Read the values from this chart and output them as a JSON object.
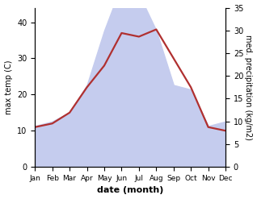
{
  "months": [
    "Jan",
    "Feb",
    "Mar",
    "Apr",
    "May",
    "Jun",
    "Jul",
    "Aug",
    "Sep",
    "Oct",
    "Nov",
    "Dec"
  ],
  "month_indices": [
    1,
    2,
    3,
    4,
    5,
    6,
    7,
    8,
    9,
    10,
    11,
    12
  ],
  "temperature": [
    11,
    12,
    15,
    22,
    28,
    37,
    36,
    38,
    30,
    22,
    11,
    10
  ],
  "precipitation": [
    9,
    10,
    12,
    18,
    30,
    40,
    38,
    30,
    18,
    17,
    9,
    10
  ],
  "temp_color": "#b03030",
  "precip_fill_color": "#c5ccee",
  "ylabel_left": "max temp (C)",
  "ylabel_right": "med. precipitation (kg/m2)",
  "xlabel": "date (month)",
  "ylim_left": [
    0,
    44
  ],
  "ylim_right": [
    0,
    35
  ],
  "yticks_left": [
    0,
    10,
    20,
    30,
    40
  ],
  "yticks_right": [
    0,
    5,
    10,
    15,
    20,
    25,
    30,
    35
  ],
  "line_width": 1.6,
  "precip_scale_factor": 1.2571
}
